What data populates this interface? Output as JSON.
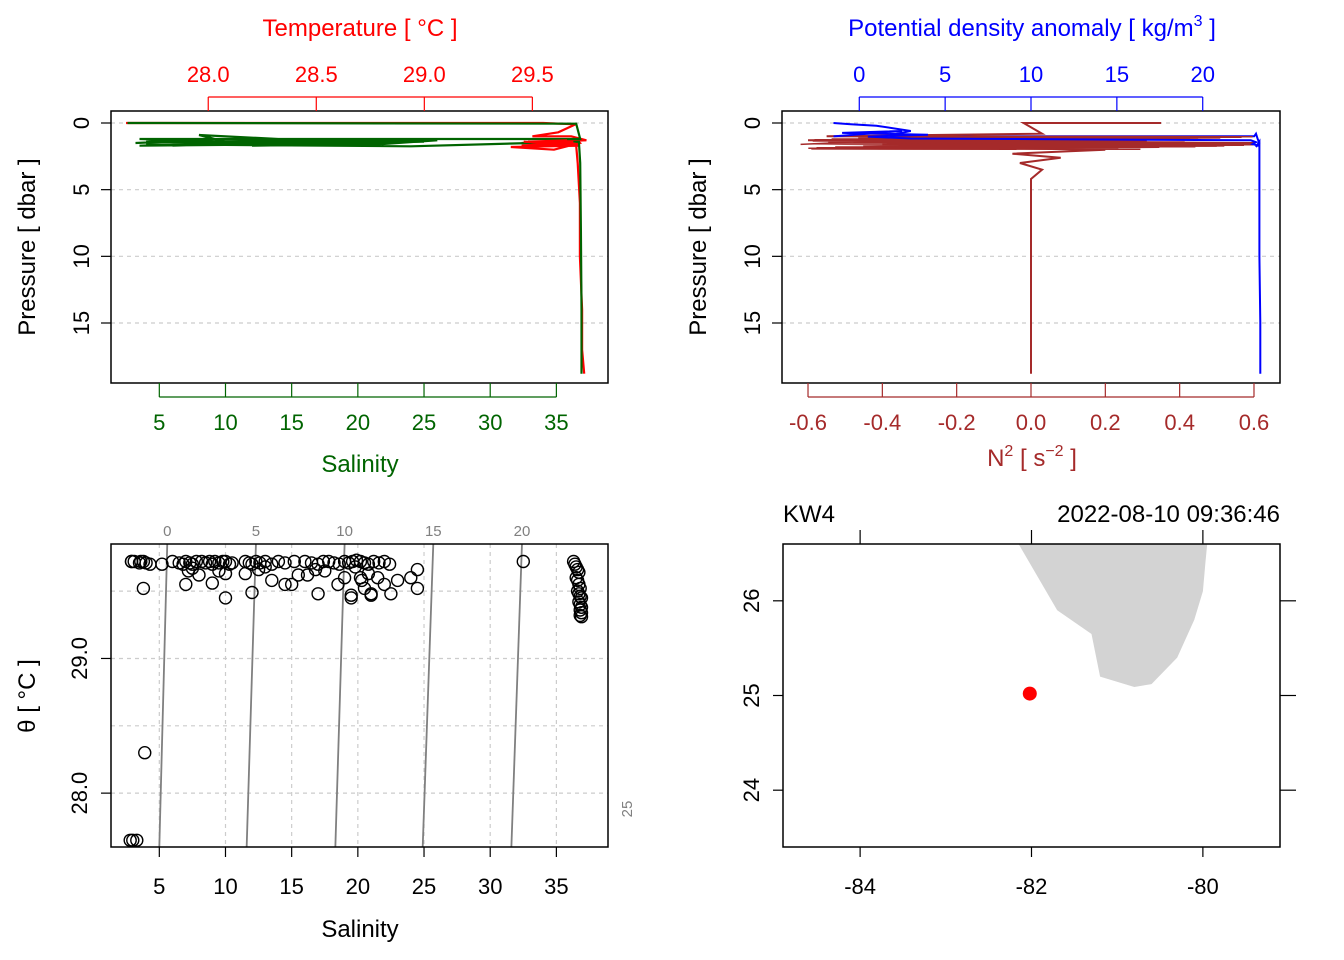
{
  "colors": {
    "temperature": "#ff0000",
    "salinity": "#006400",
    "density": "#0000ff",
    "n2": "#a52a2a",
    "isopycnal": "#808080",
    "grid": "#cccccc",
    "land": "#d3d3d3",
    "station": "#ff0000"
  },
  "chart_data": [
    {
      "panel": "top-left",
      "type": "line",
      "title": "Temperature [ °C ]",
      "top_axis": {
        "label": "Temperature [ °C ]",
        "range": [
          27.55,
          29.85
        ],
        "ticks": [
          28.0,
          28.5,
          29.0,
          29.5
        ],
        "tick_labels": [
          "28.0",
          "28.5",
          "29.0",
          "29.5"
        ]
      },
      "bottom_axis": {
        "label": "Salinity",
        "range": [
          1.35,
          38.9
        ],
        "ticks": [
          5,
          10,
          15,
          20,
          25,
          30,
          35
        ],
        "tick_labels": [
          "5",
          "10",
          "15",
          "20",
          "25",
          "30",
          "35"
        ]
      },
      "y_axis": {
        "label": "Pressure [ dbar ]",
        "range": [
          19.5,
          -0.9
        ],
        "reversed": true,
        "ticks": [
          0,
          5,
          10,
          15
        ],
        "tick_labels": [
          "0",
          "5",
          "10",
          "15"
        ]
      },
      "series": [
        {
          "name": "Temperature",
          "axis": "top",
          "x": [
            27.62,
            29.55,
            29.7,
            29.62,
            29.5,
            29.68,
            29.75,
            29.45,
            29.68,
            29.72,
            29.4,
            29.6,
            29.72,
            29.7,
            29.71,
            29.72,
            29.72,
            29.73,
            29.73,
            29.74
          ],
          "y": [
            0.0,
            0.0,
            0.1,
            0.7,
            1.0,
            1.0,
            1.3,
            1.5,
            1.6,
            1.7,
            1.8,
            2.0,
            1.5,
            1.2,
            3.0,
            6.0,
            10.0,
            14.0,
            17.0,
            18.8
          ]
        },
        {
          "name": "Salinity",
          "axis": "bottom",
          "x": [
            2.6,
            5.0,
            36.5,
            36.8,
            3.5,
            10.0,
            8.0,
            16.0,
            18.0,
            12.0,
            22.0,
            26.0,
            20.0,
            4.0,
            24.0,
            36.7,
            36.8,
            36.85,
            36.9,
            36.9
          ],
          "y": [
            0.0,
            0.0,
            0.05,
            1.2,
            1.2,
            1.4,
            0.9,
            1.3,
            1.6,
            1.5,
            1.4,
            1.3,
            1.7,
            1.6,
            1.75,
            1.4,
            3.0,
            8.0,
            14.0,
            18.8
          ]
        }
      ]
    },
    {
      "panel": "top-right",
      "type": "line",
      "title": "Potential density anomaly [ kg/m3 ]",
      "top_axis": {
        "label_main": "Potential density anomaly [ kg/m",
        "label_sup": "3",
        "label_end": " ]",
        "range": [
          -4.5,
          24.5
        ],
        "ticks": [
          0,
          5,
          10,
          15,
          20
        ],
        "tick_labels": [
          "0",
          "5",
          "10",
          "15",
          "20"
        ]
      },
      "bottom_axis": {
        "label_main": "N",
        "label_sup": "2",
        "label_mid": " [ s",
        "label_sup2": "−2",
        "label_end": " ]",
        "range": [
          -0.67,
          0.67
        ],
        "ticks": [
          -0.6,
          -0.4,
          -0.2,
          0.0,
          0.2,
          0.4,
          0.6
        ],
        "tick_labels": [
          "-0.6",
          "-0.4",
          "-0.2",
          "0.0",
          "0.2",
          "0.4",
          "0.6"
        ]
      },
      "y_axis": {
        "label": "Pressure [ dbar ]",
        "range": [
          19.5,
          -0.9
        ],
        "reversed": true,
        "ticks": [
          0,
          5,
          10,
          15
        ],
        "tick_labels": [
          "0",
          "5",
          "10",
          "15"
        ]
      },
      "series": [
        {
          "name": "Density anomaly",
          "axis": "top",
          "x": [
            -1.5,
            -0.5,
            1.0,
            3.0,
            1.0,
            3.0,
            5.0,
            23.0,
            23.1,
            23.2,
            23.3,
            23.1,
            23.2,
            23.3,
            23.3,
            23.3,
            23.35,
            23.35
          ],
          "y": [
            0.0,
            0.1,
            0.2,
            0.6,
            1.1,
            1.2,
            1.0,
            1.0,
            0.8,
            1.2,
            1.5,
            1.8,
            1.6,
            1.4,
            5.0,
            10.0,
            15.0,
            18.8
          ]
        },
        {
          "name": "N2",
          "axis": "bottom",
          "x": [
            0.35,
            -0.02,
            0.03,
            -0.55,
            0.45,
            -0.6,
            0.6,
            -0.4,
            0.5,
            -0.3,
            0.2,
            -0.05,
            0.08,
            -0.03,
            0.03,
            0.0,
            0.0,
            0.0,
            0.0
          ],
          "y": [
            0.0,
            0.0,
            0.8,
            1.0,
            1.1,
            1.3,
            1.5,
            1.6,
            1.7,
            1.8,
            2.0,
            2.3,
            2.6,
            3.0,
            3.5,
            4.2,
            8.0,
            14.0,
            18.8
          ]
        }
      ]
    },
    {
      "panel": "bottom-left",
      "type": "scatter",
      "xlabel": "Salinity",
      "ylabel": "θ [ °C ]",
      "xlim": [
        1.35,
        38.9
      ],
      "ylim": [
        27.6,
        29.85
      ],
      "x_ticks": [
        5,
        10,
        15,
        20,
        25,
        30,
        35
      ],
      "x_tick_labels": [
        "5",
        "10",
        "15",
        "20",
        "25",
        "30",
        "35"
      ],
      "y_ticks": [
        28.0,
        29.0
      ],
      "y_tick_labels": [
        "28.0",
        "29.0"
      ],
      "isopycnals": [
        {
          "label": "0",
          "s_bottom": 5.0,
          "s_top": 5.6
        },
        {
          "label": "5",
          "s_bottom": 11.6,
          "s_top": 12.3
        },
        {
          "label": "10",
          "s_bottom": 18.3,
          "s_top": 19.0
        },
        {
          "label": "15",
          "s_bottom": 24.9,
          "s_top": 25.7
        },
        {
          "label": "20",
          "s_bottom": 31.6,
          "s_top": 32.4
        },
        {
          "label": "25",
          "s_bottom": 38.3,
          "s_top": 38.9
        }
      ],
      "points": {
        "x": [
          2.8,
          3.0,
          3.3,
          2.9,
          3.1,
          3.8,
          2.9,
          3.5,
          3.6,
          4.0,
          4.3,
          3.8,
          5.2,
          6.0,
          6.5,
          6.8,
          7.0,
          7.3,
          7.5,
          7.8,
          8.2,
          8.5,
          8.8,
          9.0,
          9.2,
          9.5,
          9.8,
          10.0,
          10.3,
          10.5,
          7.0,
          7.2,
          7.5,
          9.0,
          8.0,
          9.5,
          10.0,
          11.5,
          11.8,
          12.0,
          12.3,
          12.6,
          13.0,
          13.5,
          14.0,
          14.5,
          15.2,
          16.0,
          16.5,
          17.0,
          17.4,
          17.8,
          18.2,
          18.6,
          19.0,
          19.3,
          19.6,
          19.9,
          20.2,
          20.5,
          20.8,
          21.2,
          21.6,
          22.0,
          22.4,
          12.5,
          13.0,
          15.0,
          16.2,
          16.8,
          17.5,
          18.5,
          19.0,
          19.8,
          20.3,
          20.8,
          21.5,
          22.0,
          23.0,
          24.0,
          24.5,
          19.5,
          20.5,
          21.0,
          24.5,
          12.0,
          17.0,
          19.5,
          20.2,
          22.5,
          21.0,
          14.5,
          13.5,
          10.0,
          11.5,
          15.5,
          32.5,
          36.3,
          36.4,
          36.5,
          36.6,
          36.7,
          36.5,
          36.6,
          36.7,
          36.8,
          36.6,
          36.7,
          36.8,
          36.9,
          36.7,
          36.8,
          36.9,
          36.8,
          36.9,
          36.8,
          36.9
        ],
        "y": [
          27.65,
          27.65,
          27.65,
          29.72,
          29.72,
          29.72,
          29.72,
          29.71,
          29.72,
          29.71,
          29.7,
          29.52,
          29.7,
          29.72,
          29.71,
          29.7,
          29.72,
          29.71,
          29.7,
          29.72,
          29.72,
          29.71,
          29.72,
          29.7,
          29.72,
          29.71,
          29.72,
          29.72,
          29.7,
          29.71,
          29.55,
          29.65,
          29.67,
          29.56,
          29.62,
          29.65,
          29.63,
          29.72,
          29.71,
          29.7,
          29.72,
          29.71,
          29.72,
          29.7,
          29.72,
          29.71,
          29.72,
          29.72,
          29.71,
          29.7,
          29.72,
          29.72,
          29.71,
          29.7,
          29.72,
          29.71,
          29.72,
          29.73,
          29.72,
          29.71,
          29.7,
          29.72,
          29.71,
          29.72,
          29.7,
          29.66,
          29.68,
          29.55,
          29.62,
          29.66,
          29.65,
          29.55,
          29.6,
          29.68,
          29.58,
          29.63,
          29.6,
          29.55,
          29.58,
          29.6,
          29.66,
          29.47,
          29.52,
          29.47,
          29.52,
          29.49,
          29.48,
          29.45,
          29.6,
          29.48,
          29.48,
          29.55,
          29.58,
          29.45,
          29.63,
          29.62,
          29.72,
          29.72,
          29.7,
          29.68,
          29.66,
          29.64,
          29.6,
          29.58,
          29.55,
          29.52,
          29.5,
          29.48,
          29.46,
          29.45,
          29.42,
          29.4,
          29.38,
          29.36,
          29.34,
          29.32,
          29.31
        ],
        "outlier_point": {
          "x": 3.9,
          "y": 28.3
        }
      }
    },
    {
      "panel": "bottom-right",
      "type": "map",
      "station": "KW4",
      "datetime": "2022-08-10 09:36:46",
      "xlim": [
        -84.9,
        -79.1
      ],
      "ylim": [
        23.4,
        26.6
      ],
      "x_ticks": [
        -84,
        -82,
        -80
      ],
      "x_tick_labels": [
        "-84",
        "-82",
        "-80"
      ],
      "y_ticks": [
        24,
        25,
        26
      ],
      "y_tick_labels": [
        "24",
        "25",
        "26"
      ],
      "station_position": {
        "lon": -82.02,
        "lat": 25.02
      },
      "land_outline": {
        "lon": [
          -82.15,
          -81.7,
          -81.3,
          -81.2,
          -80.8,
          -80.6,
          -80.3,
          -80.1,
          -80.0,
          -79.97,
          -79.95
        ],
        "lat": [
          26.6,
          25.9,
          25.65,
          25.2,
          25.09,
          25.12,
          25.4,
          25.8,
          26.1,
          26.4,
          26.6
        ]
      }
    }
  ]
}
